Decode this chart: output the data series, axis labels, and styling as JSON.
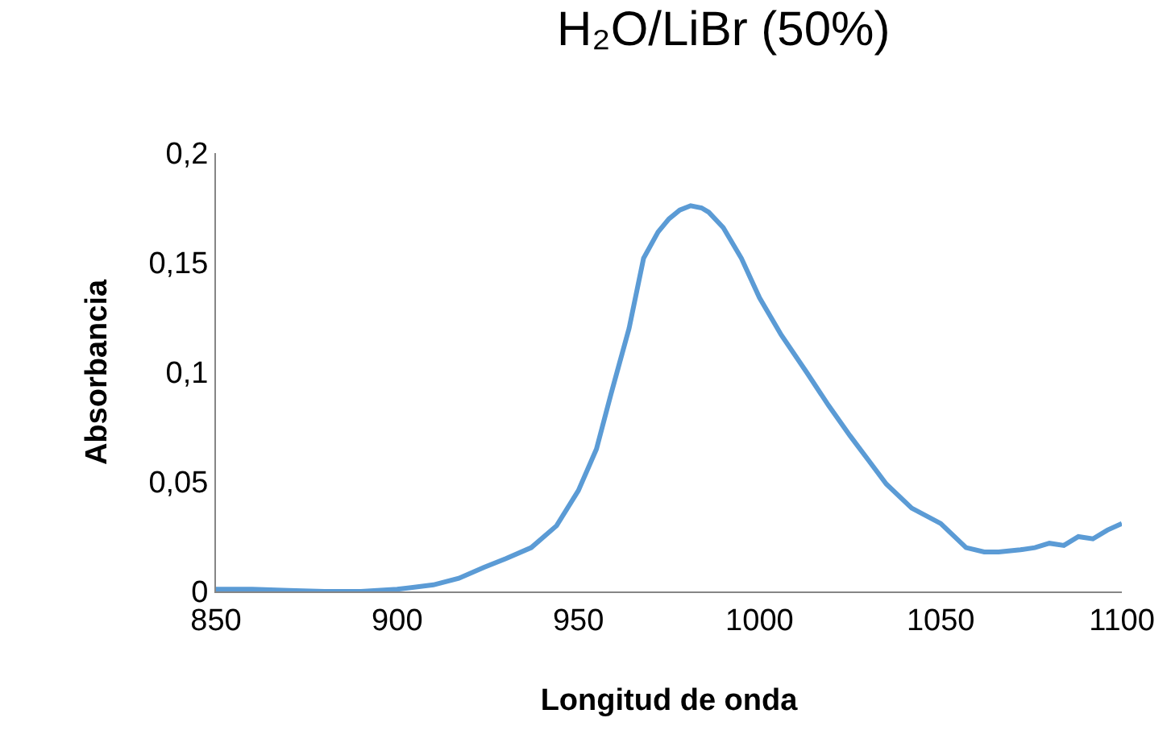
{
  "chart_data": {
    "type": "line",
    "title": "H₂O/LiBr (50%)",
    "xlabel": "Longitud de onda",
    "ylabel": "Absorbancia",
    "series": [
      {
        "color": "#5b9bd5",
        "x": [
          850,
          860,
          870,
          880,
          890,
          900,
          910,
          917,
          924,
          930,
          937,
          944,
          950,
          955,
          959,
          964,
          968,
          972,
          975,
          978,
          981,
          984,
          986,
          990,
          995,
          1000,
          1006,
          1013,
          1019,
          1025,
          1030,
          1035,
          1042,
          1050,
          1057,
          1062,
          1066,
          1072,
          1076,
          1080,
          1084,
          1088,
          1092,
          1096,
          1100
        ],
        "values": [
          0.001,
          0.001,
          0.0005,
          0,
          0,
          0.001,
          0.003,
          0.006,
          0.011,
          0.015,
          0.02,
          0.03,
          0.046,
          0.065,
          0.09,
          0.12,
          0.152,
          0.164,
          0.17,
          0.174,
          0.176,
          0.175,
          0.173,
          0.166,
          0.152,
          0.134,
          0.117,
          0.1,
          0.085,
          0.071,
          0.06,
          0.049,
          0.038,
          0.031,
          0.02,
          0.018,
          0.018,
          0.019,
          0.02,
          0.022,
          0.021,
          0.025,
          0.024,
          0.028,
          0.031
        ]
      }
    ],
    "xlim": [
      850,
      1100
    ],
    "xticks": [
      850,
      900,
      950,
      1000,
      1050,
      1100
    ],
    "ylim": [
      0,
      0.2
    ],
    "yticks": [
      0,
      {
        "value": 0.05,
        "label": "0,05"
      },
      {
        "value": 0.1,
        "label": "0,1"
      },
      {
        "value": 0.15,
        "label": "0,15"
      },
      {
        "value": 0.2,
        "label": "0,2"
      }
    ],
    "grid": false,
    "marker": "none",
    "line_style": "solid"
  }
}
